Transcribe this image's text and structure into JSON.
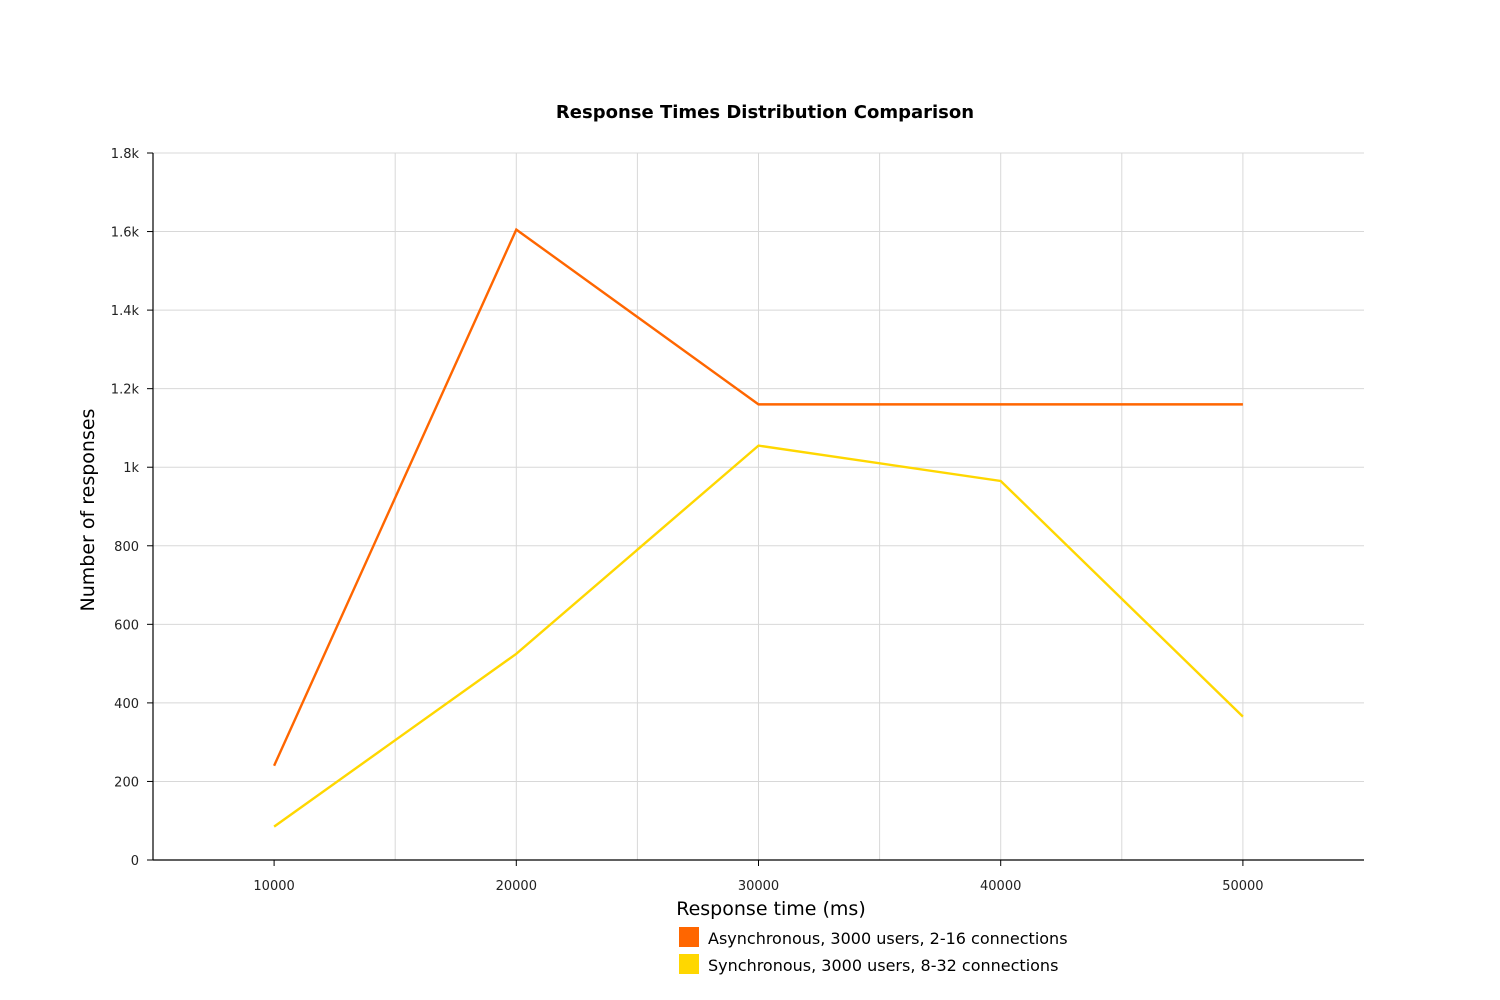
{
  "chart_data": {
    "type": "line",
    "title": "Response Times Distribution Comparison",
    "xlabel": "Response time (ms)",
    "ylabel": "Number of responses",
    "x": [
      10000,
      20000,
      30000,
      40000,
      50000
    ],
    "xlim": [
      5000,
      55000
    ],
    "ylim": [
      0,
      1800
    ],
    "x_ticks": [
      10000,
      20000,
      30000,
      40000,
      50000
    ],
    "x_tick_labels": [
      "10000",
      "20000",
      "30000",
      "40000",
      "50000"
    ],
    "y_ticks": [
      0,
      200,
      400,
      600,
      800,
      1000,
      1200,
      1400,
      1600,
      1800
    ],
    "y_tick_labels": [
      "0",
      "200",
      "400",
      "600",
      "800",
      "1k",
      "1.2k",
      "1.4k",
      "1.6k",
      "1.8k"
    ],
    "grid": true,
    "legend_position": "bottom",
    "series": [
      {
        "name": "Asynchronous, 3000 users, 2-16 connections",
        "color": "#ff6600",
        "values": [
          240,
          1605,
          1160,
          1160,
          1160
        ]
      },
      {
        "name": "Synchronous, 3000 users, 8-32 connections",
        "color": "#ffd700",
        "values": [
          85,
          525,
          1055,
          965,
          365
        ]
      }
    ]
  }
}
